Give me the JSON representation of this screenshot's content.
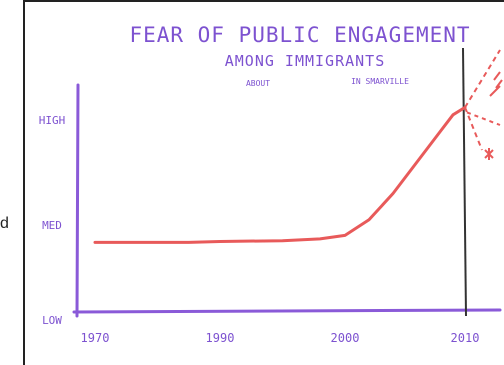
{
  "edge_text": "d",
  "chart_data": {
    "type": "line",
    "title": "FEAR OF PUBLIC ENGAGEMENT",
    "subtitle": "AMONG IMMIGRANTS",
    "subtitle_note_left": "ABOUT",
    "subtitle_note_right": "IN SMARVILLE",
    "y_tick_labels": [
      "HIGH",
      "MED",
      "LOW"
    ],
    "y_tick_values": [
      3,
      2,
      1
    ],
    "x_tick_labels": [
      "1970",
      "1990",
      "2000",
      "2010"
    ],
    "x_tick_values": [
      1970,
      1990,
      2000,
      2010
    ],
    "xlim": [
      1970,
      2011
    ],
    "ylim": [
      1,
      3.2
    ],
    "marker_year": 2010,
    "grid": false,
    "series": [
      {
        "color": "#e85a5a",
        "x": [
          1970,
          1975,
          1980,
          1985,
          1990,
          1995,
          1998,
          2000,
          2002,
          2004,
          2006,
          2008,
          2009,
          2010
        ],
        "y": [
          1.8,
          1.8,
          1.8,
          1.8,
          1.81,
          1.82,
          1.84,
          1.88,
          2.05,
          2.3,
          2.6,
          2.9,
          3.05,
          3.12
        ]
      }
    ],
    "colors": {
      "axis": "#8a5ad8",
      "title": "#7d52d0",
      "line": "#e85a5a",
      "marker": "#333333"
    }
  }
}
